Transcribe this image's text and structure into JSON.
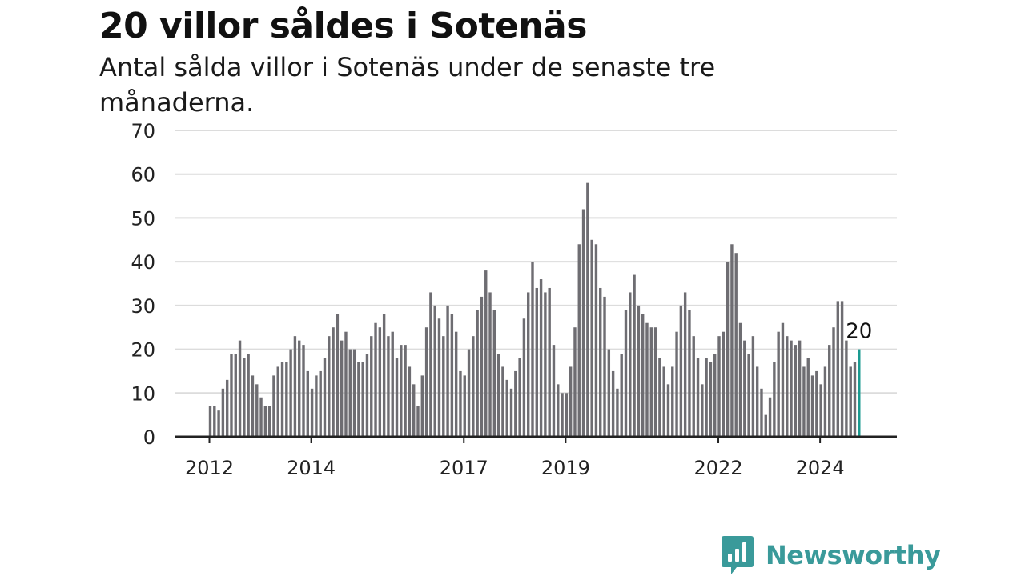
{
  "header": {
    "title": "20 villor såldes i Sotenäs",
    "subtitle": "Antal sålda villor i Sotenäs under de senaste tre månaderna."
  },
  "brand": {
    "name": "Newsworthy",
    "color": "#3a9a9a",
    "icon": "chart-bubble-icon"
  },
  "chart_data": {
    "type": "bar",
    "start": "2012-01",
    "y_ticks": [
      "0",
      "10",
      "20",
      "30",
      "40",
      "50",
      "60",
      "70"
    ],
    "ylim": [
      0,
      70
    ],
    "x_ticks": [
      {
        "label": "2012",
        "year": 2012
      },
      {
        "label": "2014",
        "year": 2014
      },
      {
        "label": "2017",
        "year": 2017
      },
      {
        "label": "2019",
        "year": 2019
      },
      {
        "label": "2022",
        "year": 2022
      },
      {
        "label": "2024",
        "year": 2024
      }
    ],
    "values": [
      7,
      7,
      6,
      11,
      13,
      19,
      19,
      22,
      18,
      19,
      14,
      12,
      9,
      7,
      7,
      14,
      16,
      17,
      17,
      20,
      23,
      22,
      21,
      15,
      11,
      14,
      15,
      18,
      23,
      25,
      28,
      22,
      24,
      20,
      20,
      17,
      17,
      19,
      23,
      26,
      25,
      28,
      23,
      24,
      18,
      21,
      21,
      16,
      12,
      7,
      14,
      25,
      33,
      30,
      27,
      23,
      30,
      28,
      24,
      15,
      14,
      20,
      23,
      29,
      32,
      38,
      33,
      29,
      19,
      16,
      13,
      11,
      15,
      18,
      27,
      33,
      40,
      34,
      36,
      33,
      34,
      21,
      12,
      10,
      10,
      16,
      25,
      44,
      52,
      58,
      45,
      44,
      34,
      32,
      20,
      15,
      11,
      19,
      29,
      33,
      37,
      30,
      28,
      26,
      25,
      25,
      18,
      16,
      12,
      16,
      24,
      30,
      33,
      29,
      23,
      18,
      12,
      18,
      17,
      19,
      23,
      24,
      40,
      44,
      42,
      26,
      22,
      19,
      23,
      16,
      11,
      5,
      9,
      17,
      24,
      26,
      23,
      22,
      21,
      22,
      16,
      18,
      14,
      15,
      12,
      16,
      21,
      25,
      31,
      31,
      22,
      16,
      17,
      20
    ],
    "bar_color": "#6e6d72",
    "highlight_color": "#1a9a90",
    "last_label": "20",
    "grid": true,
    "legend": "none"
  }
}
